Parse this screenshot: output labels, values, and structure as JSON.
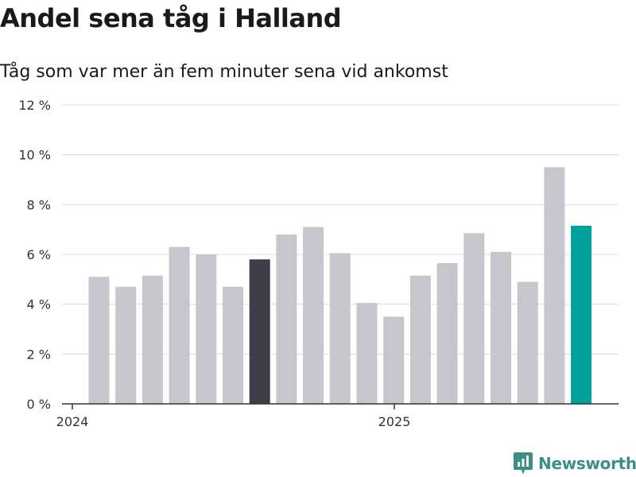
{
  "header": {
    "title": "Andel sena tåg i Halland",
    "subtitle": "Tåg som var mer än fem minuter sena vid ankomst"
  },
  "branding": {
    "logo_text": "Newsworthy",
    "logo_icon": "bar-chart-badge-icon",
    "logo_color": "#3a8f86"
  },
  "colors": {
    "default_bar": "#c7c6cd",
    "highlight_bar": "#3f3d4a",
    "latest_bar": "#00a19a",
    "gridline": "#dcdcdc",
    "axis": "#333333"
  },
  "chart_data": {
    "type": "bar",
    "title": "Andel sena tåg i Halland",
    "subtitle": "Tåg som var mer än fem minuter sena vid ankomst",
    "xlabel": "",
    "ylabel": "",
    "ylim": [
      0,
      12
    ],
    "yticks": [
      0,
      2,
      4,
      6,
      8,
      10,
      12
    ],
    "ytick_labels": [
      "0 %",
      "2 %",
      "4 %",
      "6 %",
      "8 %",
      "10 %",
      "12 %"
    ],
    "xtick_labels": [
      {
        "label": "2024",
        "at_index": 0
      },
      {
        "label": "2025",
        "at_index": 12
      }
    ],
    "grid": true,
    "legend": "none",
    "values": [
      5.1,
      4.7,
      5.15,
      6.3,
      6.0,
      4.7,
      5.8,
      6.8,
      7.1,
      6.05,
      4.05,
      3.5,
      5.15,
      5.65,
      6.85,
      6.1,
      4.9,
      9.5,
      7.15
    ],
    "bar_styles": [
      "default",
      "default",
      "default",
      "default",
      "default",
      "default",
      "highlight",
      "default",
      "default",
      "default",
      "default",
      "default",
      "default",
      "default",
      "default",
      "default",
      "default",
      "default",
      "latest"
    ]
  }
}
